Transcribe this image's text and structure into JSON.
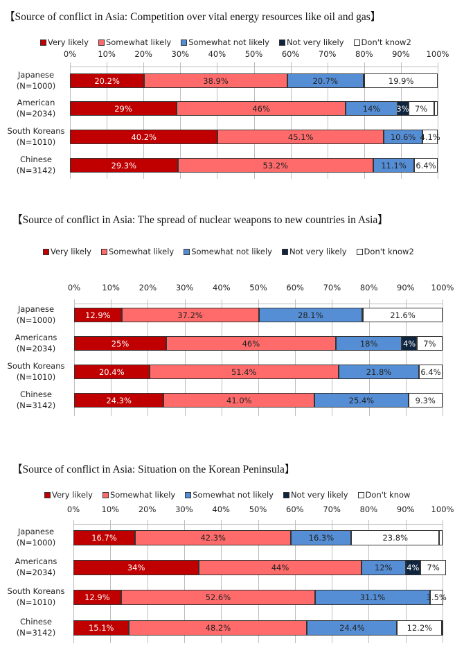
{
  "colors": {
    "very_likely": "#c00000",
    "somewhat_likely": "#ff6b6b",
    "somewhat_not_likely": "#558ed5",
    "not_very_likely": "#0f243e",
    "dont_know": "#ffffff"
  },
  "chart_data": [
    {
      "type": "bar",
      "orientation": "horizontal-stacked-100",
      "title": "【Source of conflict in Asia: Competition over vital energy resources like oil and gas】",
      "legend": [
        "Very likely",
        "Somewhat likely",
        "Somewhat not likely",
        "Not very likely",
        "Don't know2"
      ],
      "legend_position": "top",
      "xticks": [
        "0%",
        "10%",
        "20%",
        "30%",
        "40%",
        "50%",
        "60%",
        "70%",
        "80%",
        "90%",
        "100%"
      ],
      "xlim": [
        0,
        100
      ],
      "grid": true,
      "categories": [
        {
          "name": "Japanese",
          "n": "(N=1000)"
        },
        {
          "name": "American",
          "n": "(N=2034)"
        },
        {
          "name": "South Koreans",
          "n": "(N=1010)"
        },
        {
          "name": "Chinese",
          "n": "(N=3142)"
        }
      ],
      "series": [
        {
          "name": "Very likely",
          "values": [
            20.2,
            29,
            40.2,
            29.3
          ],
          "labels": [
            "20.2%",
            "29%",
            "40.2%",
            "29.3%"
          ]
        },
        {
          "name": "Somewhat likely",
          "values": [
            38.9,
            46,
            45.1,
            53.2
          ],
          "labels": [
            "38.9%",
            "46%",
            "45.1%",
            "53.2%"
          ]
        },
        {
          "name": "Somewhat not likely",
          "values": [
            20.7,
            14,
            10.6,
            11.1
          ],
          "labels": [
            "20.7%",
            "14%",
            "10.6%",
            "11.1%"
          ]
        },
        {
          "name": "Not very likely",
          "values": [
            0.3,
            3,
            0,
            0
          ],
          "labels": [
            "",
            "3%",
            "",
            ""
          ]
        },
        {
          "name": "Don't know2",
          "values": [
            19.9,
            7,
            4.1,
            6.4
          ],
          "labels": [
            "19.9%",
            "7%",
            "4.1%",
            "6.4%"
          ]
        }
      ]
    },
    {
      "type": "bar",
      "orientation": "horizontal-stacked-100",
      "title": "【Source of conflict in Asia: The spread of nuclear weapons to new countries in Asia】",
      "legend": [
        "Very likely",
        "Somewhat likely",
        "Somewhat not likely",
        "Not very likely",
        "Don't know2"
      ],
      "legend_position": "top",
      "xticks": [
        "0%",
        "10%",
        "20%",
        "30%",
        "40%",
        "50%",
        "60%",
        "70%",
        "80%",
        "90%",
        "100%"
      ],
      "xlim": [
        0,
        100
      ],
      "grid": true,
      "categories": [
        {
          "name": "Japanese",
          "n": "(N=1000)"
        },
        {
          "name": "Americans",
          "n": "(N=2034)"
        },
        {
          "name": "South Koreans",
          "n": "(N=1010)"
        },
        {
          "name": "Chinese",
          "n": "(N=3142)"
        }
      ],
      "series": [
        {
          "name": "Very likely",
          "values": [
            12.9,
            25,
            20.4,
            24.3
          ],
          "labels": [
            "12.9%",
            "25%",
            "20.4%",
            "24.3%"
          ]
        },
        {
          "name": "Somewhat likely",
          "values": [
            37.2,
            46,
            51.4,
            41.0
          ],
          "labels": [
            "37.2%",
            "46%",
            "51.4%",
            "41.0%"
          ]
        },
        {
          "name": "Somewhat not likely",
          "values": [
            28.1,
            18,
            21.8,
            25.4
          ],
          "labels": [
            "28.1%",
            "18%",
            "21.8%",
            "25.4%"
          ]
        },
        {
          "name": "Not very likely",
          "values": [
            0.2,
            4,
            0,
            0
          ],
          "labels": [
            "",
            "4%",
            "",
            ""
          ]
        },
        {
          "name": "Don't know2",
          "values": [
            21.6,
            7,
            6.4,
            9.3
          ],
          "labels": [
            "21.6%",
            "7%",
            "6.4%",
            "9.3%"
          ]
        }
      ]
    },
    {
      "type": "bar",
      "orientation": "horizontal-stacked-100",
      "title": "【Source of conflict in Asia: Situation on the Korean Peninsula】",
      "legend": [
        "Very likely",
        "Somewhat likely",
        "Somewhat not likely",
        "Not very likely",
        "Don't know"
      ],
      "legend_position": "top",
      "xticks": [
        "0%",
        "10%",
        "20%",
        "30%",
        "40%",
        "50%",
        "60%",
        "70%",
        "80%",
        "90%",
        "100%"
      ],
      "xlim": [
        0,
        100
      ],
      "grid": true,
      "categories": [
        {
          "name": "Japanese",
          "n": "(N=1000)"
        },
        {
          "name": "Americans",
          "n": "(N=2034)"
        },
        {
          "name": "South Koreans",
          "n": "(N=1010)"
        },
        {
          "name": "Chinese",
          "n": "(N=3142)"
        }
      ],
      "series": [
        {
          "name": "Very likely",
          "values": [
            16.7,
            34,
            12.9,
            15.1
          ],
          "labels": [
            "16.7%",
            "34%",
            "12.9%",
            "15.1%"
          ]
        },
        {
          "name": "Somewhat likely",
          "values": [
            42.3,
            44,
            52.6,
            48.2
          ],
          "labels": [
            "42.3%",
            "44%",
            "52.6%",
            "48.2%"
          ]
        },
        {
          "name": "Somewhat not likely",
          "values": [
            16.3,
            12,
            31.1,
            24.4
          ],
          "labels": [
            "16.3%",
            "12%",
            "31.1%",
            "24.4%"
          ]
        },
        {
          "name": "Not very likely",
          "values": [
            0,
            4,
            0,
            0
          ],
          "labels": [
            "",
            "4%",
            "",
            ""
          ]
        },
        {
          "name": "Don't know",
          "values": [
            23.8,
            7,
            3.5,
            12.2
          ],
          "labels": [
            "23.8%",
            "7%",
            "3.5%",
            "12.2%"
          ]
        }
      ],
      "extra_segment_note": "Japanese row has an additional thin unlabeled white segment (~0.9%) at the end"
    }
  ]
}
